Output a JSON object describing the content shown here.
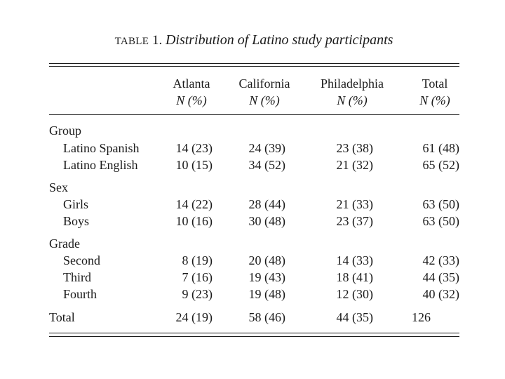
{
  "table": {
    "caption_label": "TABLE",
    "caption_number": "1.",
    "caption_title": "Distribution of Latino study participants",
    "subheader": "N (%)",
    "columns": [
      "Atlanta",
      "California",
      "Philadelphia",
      "Total"
    ],
    "groups": [
      {
        "label": "Group",
        "rows": [
          {
            "label": "Latino Spanish",
            "values": [
              "14 (23)",
              "24 (39)",
              "23 (38)",
              "61 (48)"
            ]
          },
          {
            "label": "Latino English",
            "values": [
              "10 (15)",
              "34 (52)",
              "21 (32)",
              "65 (52)"
            ]
          }
        ]
      },
      {
        "label": "Sex",
        "rows": [
          {
            "label": "Girls",
            "values": [
              "14 (22)",
              "28 (44)",
              "21 (33)",
              "63 (50)"
            ]
          },
          {
            "label": "Boys",
            "values": [
              "10 (16)",
              "30 (48)",
              "23 (37)",
              "63 (50)"
            ]
          }
        ]
      },
      {
        "label": "Grade",
        "rows": [
          {
            "label": "Second",
            "values": [
              "8 (19)",
              "20 (48)",
              "14 (33)",
              "42 (33)"
            ]
          },
          {
            "label": "Third",
            "values": [
              "7 (16)",
              "19 (43)",
              "18 (41)",
              "44 (35)"
            ]
          },
          {
            "label": "Fourth",
            "values": [
              "9 (23)",
              "19 (48)",
              "12 (30)",
              "40 (32)"
            ]
          }
        ]
      }
    ],
    "total_row": {
      "label": "Total",
      "values": [
        "24 (19)",
        "58 (46)",
        "44 (35)",
        "126"
      ]
    }
  }
}
